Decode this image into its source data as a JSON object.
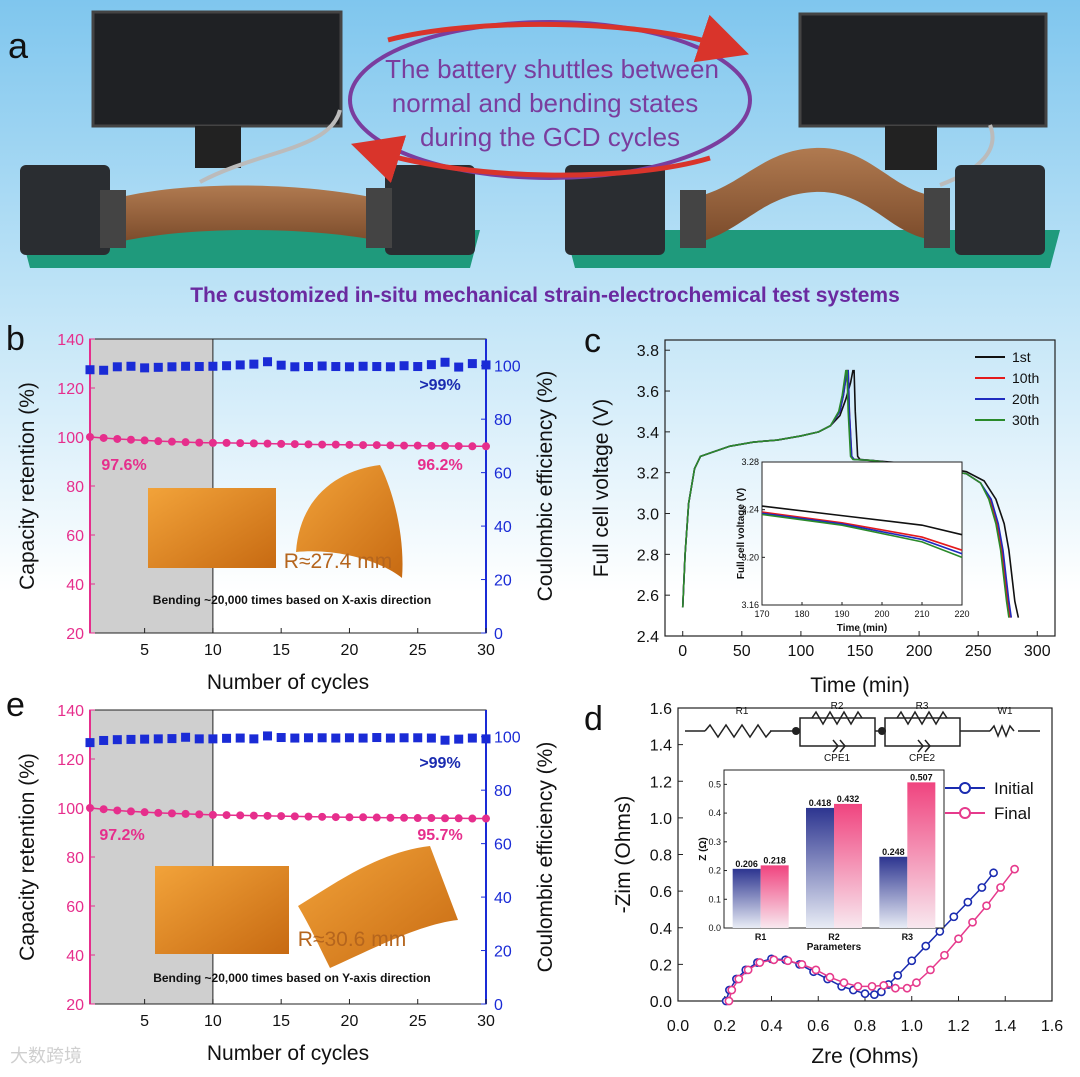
{
  "panel_a": {
    "label": "a",
    "shuttle_text": [
      "The battery shuttles between",
      "normal and  bending states",
      "during the GCD cycles"
    ],
    "caption": "The customized in-situ mechanical strain-electrochemical test systems"
  },
  "chart_data": [
    {
      "id": "b",
      "label": "b",
      "type": "scatter",
      "title": "",
      "xlabel": "Number of cycles",
      "ylabel": "Capacity retention (%)",
      "y2label": "Coulombic efficiency (%)",
      "xlim": [
        1,
        30
      ],
      "ylim": [
        20,
        140
      ],
      "y2lim": [
        0,
        110
      ],
      "xticks": [
        5,
        10,
        15,
        20,
        25,
        30
      ],
      "yticks": [
        20,
        40,
        60,
        80,
        100,
        120,
        140
      ],
      "y2ticks": [
        0,
        20,
        40,
        60,
        80,
        100
      ],
      "shaded_x": [
        1,
        10
      ],
      "x": [
        1,
        2,
        3,
        4,
        5,
        6,
        7,
        8,
        9,
        10,
        11,
        12,
        13,
        14,
        15,
        16,
        17,
        18,
        19,
        20,
        21,
        22,
        23,
        24,
        25,
        26,
        27,
        28,
        29,
        30
      ],
      "series": [
        {
          "name": "Capacity retention",
          "axis": "left",
          "color": "#e62e8c",
          "values": [
            100,
            99.6,
            99.2,
            98.9,
            98.6,
            98.3,
            98.1,
            97.9,
            97.7,
            97.6,
            97.6,
            97.5,
            97.4,
            97.3,
            97.2,
            97.1,
            97.0,
            96.9,
            96.9,
            96.8,
            96.7,
            96.7,
            96.6,
            96.5,
            96.5,
            96.4,
            96.4,
            96.3,
            96.2,
            96.2
          ]
        },
        {
          "name": "Coulombic efficiency",
          "axis": "right",
          "color": "#1a2bd6",
          "values": [
            98.5,
            98.3,
            99.6,
            99.8,
            99.2,
            99.4,
            99.6,
            99.8,
            99.7,
            99.8,
            100,
            100.3,
            100.6,
            101.5,
            100.2,
            99.6,
            99.7,
            99.9,
            99.7,
            99.6,
            99.8,
            99.7,
            99.6,
            100,
            99.7,
            100.4,
            101.3,
            99.5,
            100.8,
            100.3
          ]
        }
      ],
      "annotations": {
        "ce": ">99%",
        "cr_start": "97.6%",
        "cr_end": "96.2%",
        "radius": "R≈27.4 mm",
        "note": "Bending ~20,000 times based on X-axis direction"
      }
    },
    {
      "id": "e",
      "label": "e",
      "type": "scatter",
      "title": "",
      "xlabel": "Number of cycles",
      "ylabel": "Capacity retention (%)",
      "y2label": "Coulombic efficiency (%)",
      "xlim": [
        1,
        30
      ],
      "ylim": [
        20,
        140
      ],
      "y2lim": [
        0,
        110
      ],
      "xticks": [
        5,
        10,
        15,
        20,
        25,
        30
      ],
      "yticks": [
        20,
        40,
        60,
        80,
        100,
        120,
        140
      ],
      "y2ticks": [
        0,
        20,
        40,
        60,
        80,
        100
      ],
      "shaded_x": [
        1,
        10
      ],
      "x": [
        1,
        2,
        3,
        4,
        5,
        6,
        7,
        8,
        9,
        10,
        11,
        12,
        13,
        14,
        15,
        16,
        17,
        18,
        19,
        20,
        21,
        22,
        23,
        24,
        25,
        26,
        27,
        28,
        29,
        30
      ],
      "series": [
        {
          "name": "Capacity retention",
          "axis": "left",
          "color": "#e62e8c",
          "values": [
            100,
            99.5,
            99.0,
            98.6,
            98.3,
            98.0,
            97.8,
            97.6,
            97.4,
            97.2,
            97.1,
            97.0,
            96.9,
            96.8,
            96.7,
            96.6,
            96.5,
            96.4,
            96.3,
            96.2,
            96.2,
            96.1,
            96.0,
            96.0,
            95.9,
            95.9,
            95.8,
            95.8,
            95.7,
            95.7
          ]
        },
        {
          "name": "Coulombic efficiency",
          "axis": "right",
          "color": "#1a2bd6",
          "values": [
            97.8,
            98.6,
            98.9,
            99,
            99.1,
            99.2,
            99.3,
            99.8,
            99.2,
            99.2,
            99.4,
            99.5,
            99.2,
            100.3,
            99.7,
            99.5,
            99.6,
            99.6,
            99.5,
            99.6,
            99.5,
            99.7,
            99.5,
            99.6,
            99.6,
            99.5,
            98.7,
            99.1,
            99.5,
            99.2
          ]
        }
      ],
      "annotations": {
        "ce": ">99%",
        "cr_start": "97.2%",
        "cr_end": "95.7%",
        "radius": "R≈30.6 mm",
        "note": "Bending ~20,000 times based on Y-axis direction"
      }
    },
    {
      "id": "c",
      "label": "c",
      "type": "line",
      "title": "",
      "xlabel": "Time (min)",
      "ylabel": "Full cell voltage (V)",
      "xlim": [
        -15,
        315
      ],
      "ylim": [
        2.4,
        3.85
      ],
      "xticks": [
        0,
        50,
        100,
        150,
        200,
        250,
        300
      ],
      "yticks": [
        2.4,
        2.6,
        2.8,
        3.0,
        3.2,
        3.4,
        3.6,
        3.8
      ],
      "series": [
        {
          "name": "1st",
          "color": "#111111",
          "x": [
            0,
            2,
            5,
            10,
            15,
            25,
            40,
            60,
            80,
            100,
            115,
            125,
            133,
            138,
            142,
            144,
            145,
            146,
            148,
            150,
            160,
            180,
            200,
            220,
            240,
            255,
            265,
            272,
            276,
            279,
            281,
            284
          ],
          "y": [
            2.54,
            2.8,
            3.05,
            3.22,
            3.28,
            3.3,
            3.33,
            3.35,
            3.36,
            3.38,
            3.4,
            3.43,
            3.48,
            3.56,
            3.64,
            3.7,
            3.7,
            3.5,
            3.28,
            3.265,
            3.26,
            3.25,
            3.24,
            3.225,
            3.205,
            3.16,
            3.07,
            2.95,
            2.82,
            2.67,
            2.57,
            2.49
          ]
        },
        {
          "name": "10th",
          "color": "#e41a1c",
          "x": [
            0,
            2,
            5,
            10,
            15,
            25,
            40,
            60,
            80,
            100,
            115,
            125,
            133,
            136,
            138,
            139,
            140,
            141,
            143,
            145,
            160,
            180,
            200,
            220,
            240,
            252,
            260,
            266,
            270,
            273,
            275,
            277
          ],
          "y": [
            2.54,
            2.8,
            3.05,
            3.22,
            3.28,
            3.3,
            3.33,
            3.35,
            3.36,
            3.38,
            3.4,
            3.43,
            3.5,
            3.58,
            3.66,
            3.7,
            3.7,
            3.5,
            3.28,
            3.265,
            3.26,
            3.245,
            3.235,
            3.215,
            3.195,
            3.15,
            3.07,
            2.95,
            2.82,
            2.67,
            2.57,
            2.49
          ]
        },
        {
          "name": "20th",
          "color": "#1f2bbf",
          "x": [
            0,
            2,
            5,
            10,
            15,
            25,
            40,
            60,
            80,
            100,
            115,
            125,
            133,
            136,
            138,
            139,
            140,
            141,
            143,
            145,
            160,
            180,
            200,
            220,
            240,
            252,
            261,
            267,
            271,
            274,
            276,
            278
          ],
          "y": [
            2.54,
            2.8,
            3.05,
            3.22,
            3.28,
            3.3,
            3.33,
            3.35,
            3.36,
            3.38,
            3.4,
            3.43,
            3.5,
            3.58,
            3.66,
            3.7,
            3.7,
            3.5,
            3.28,
            3.265,
            3.26,
            3.245,
            3.235,
            3.215,
            3.195,
            3.15,
            3.07,
            2.95,
            2.82,
            2.67,
            2.57,
            2.49
          ]
        },
        {
          "name": "30th",
          "color": "#2a8a2a",
          "x": [
            0,
            2,
            5,
            10,
            15,
            25,
            40,
            60,
            80,
            100,
            115,
            125,
            132,
            135,
            137,
            138,
            139,
            140,
            142,
            144,
            160,
            180,
            200,
            220,
            240,
            252,
            259,
            265,
            269,
            272,
            274,
            276
          ],
          "y": [
            2.54,
            2.8,
            3.05,
            3.22,
            3.28,
            3.3,
            3.33,
            3.35,
            3.36,
            3.38,
            3.4,
            3.43,
            3.5,
            3.58,
            3.66,
            3.7,
            3.7,
            3.5,
            3.28,
            3.265,
            3.26,
            3.245,
            3.235,
            3.215,
            3.195,
            3.15,
            3.07,
            2.95,
            2.82,
            2.67,
            2.57,
            2.49
          ]
        }
      ],
      "inset": {
        "xlabel": "Time (min)",
        "ylabel": "Full cell voltage (V)",
        "xlim": [
          170,
          220
        ],
        "ylim": [
          3.16,
          3.28
        ],
        "xticks": [
          170,
          180,
          190,
          200,
          210,
          220
        ],
        "yticks": [
          3.16,
          3.2,
          3.24,
          3.28
        ],
        "series": [
          {
            "name": "1st",
            "color": "#111111",
            "x": [
              170,
              190,
              210,
              220
            ],
            "y": [
              3.243,
              3.235,
              3.227,
              3.219
            ]
          },
          {
            "name": "10th",
            "color": "#e41a1c",
            "x": [
              170,
              190,
              210,
              220
            ],
            "y": [
              3.238,
              3.229,
              3.217,
              3.206
            ]
          },
          {
            "name": "20th",
            "color": "#1f2bbf",
            "x": [
              170,
              190,
              210,
              220
            ],
            "y": [
              3.237,
              3.228,
              3.215,
              3.203
            ]
          },
          {
            "name": "30th",
            "color": "#2a8a2a",
            "x": [
              170,
              190,
              210,
              220
            ],
            "y": [
              3.236,
              3.227,
              3.213,
              3.2
            ]
          }
        ]
      }
    },
    {
      "id": "d",
      "label": "d",
      "type": "scatter",
      "title": "",
      "xlabel": "Zre (Ohms)",
      "ylabel": "-Zim (Ohms)",
      "xlim": [
        0,
        1.6
      ],
      "ylim": [
        0,
        1.6
      ],
      "xticks": [
        0.0,
        0.2,
        0.4,
        0.6,
        0.8,
        1.0,
        1.2,
        1.4,
        1.6
      ],
      "yticks": [
        0.0,
        0.2,
        0.4,
        0.6,
        0.8,
        1.0,
        1.2,
        1.4,
        1.6
      ],
      "series": [
        {
          "name": "Initial",
          "color": "#1a2bb0",
          "x": [
            0.206,
            0.22,
            0.25,
            0.29,
            0.34,
            0.4,
            0.46,
            0.52,
            0.58,
            0.64,
            0.7,
            0.75,
            0.8,
            0.84,
            0.87,
            0.9,
            0.94,
            1.0,
            1.06,
            1.12,
            1.18,
            1.24,
            1.3,
            1.35
          ],
          "y": [
            0.0,
            0.06,
            0.12,
            0.17,
            0.21,
            0.23,
            0.225,
            0.2,
            0.16,
            0.12,
            0.08,
            0.06,
            0.04,
            0.035,
            0.05,
            0.09,
            0.14,
            0.22,
            0.3,
            0.38,
            0.46,
            0.54,
            0.62,
            0.7
          ]
        },
        {
          "name": "Final",
          "color": "#e63a8c",
          "x": [
            0.218,
            0.23,
            0.26,
            0.3,
            0.35,
            0.41,
            0.47,
            0.53,
            0.59,
            0.65,
            0.71,
            0.77,
            0.83,
            0.88,
            0.93,
            0.98,
            1.02,
            1.08,
            1.14,
            1.2,
            1.26,
            1.32,
            1.38,
            1.44
          ],
          "y": [
            0.0,
            0.06,
            0.12,
            0.17,
            0.21,
            0.225,
            0.22,
            0.2,
            0.17,
            0.13,
            0.1,
            0.08,
            0.08,
            0.085,
            0.07,
            0.07,
            0.1,
            0.17,
            0.25,
            0.34,
            0.43,
            0.52,
            0.62,
            0.72
          ]
        }
      ],
      "circuit_labels": [
        "R1",
        "R2",
        "CPE1",
        "R3",
        "CPE2",
        "W1"
      ],
      "inset": {
        "type": "bar",
        "xlabel": "Parameters",
        "ylabel": "Z (Ω)",
        "categories": [
          "R1",
          "R2",
          "R3"
        ],
        "ylim": [
          0,
          0.55
        ],
        "yticks": [
          0.0,
          0.1,
          0.2,
          0.3,
          0.4,
          0.5
        ],
        "series": [
          {
            "name": "Initial",
            "color": "#2d3590",
            "values": [
              0.206,
              0.418,
              0.248
            ],
            "labels": [
              "0.206",
              "0.418",
              "0.248"
            ]
          },
          {
            "name": "Final",
            "color": "#e8468f",
            "values": [
              0.218,
              0.432,
              0.507
            ],
            "labels": [
              "0.218",
              "0.432",
              "0.507"
            ]
          }
        ]
      }
    }
  ],
  "watermark": "大数跨境"
}
